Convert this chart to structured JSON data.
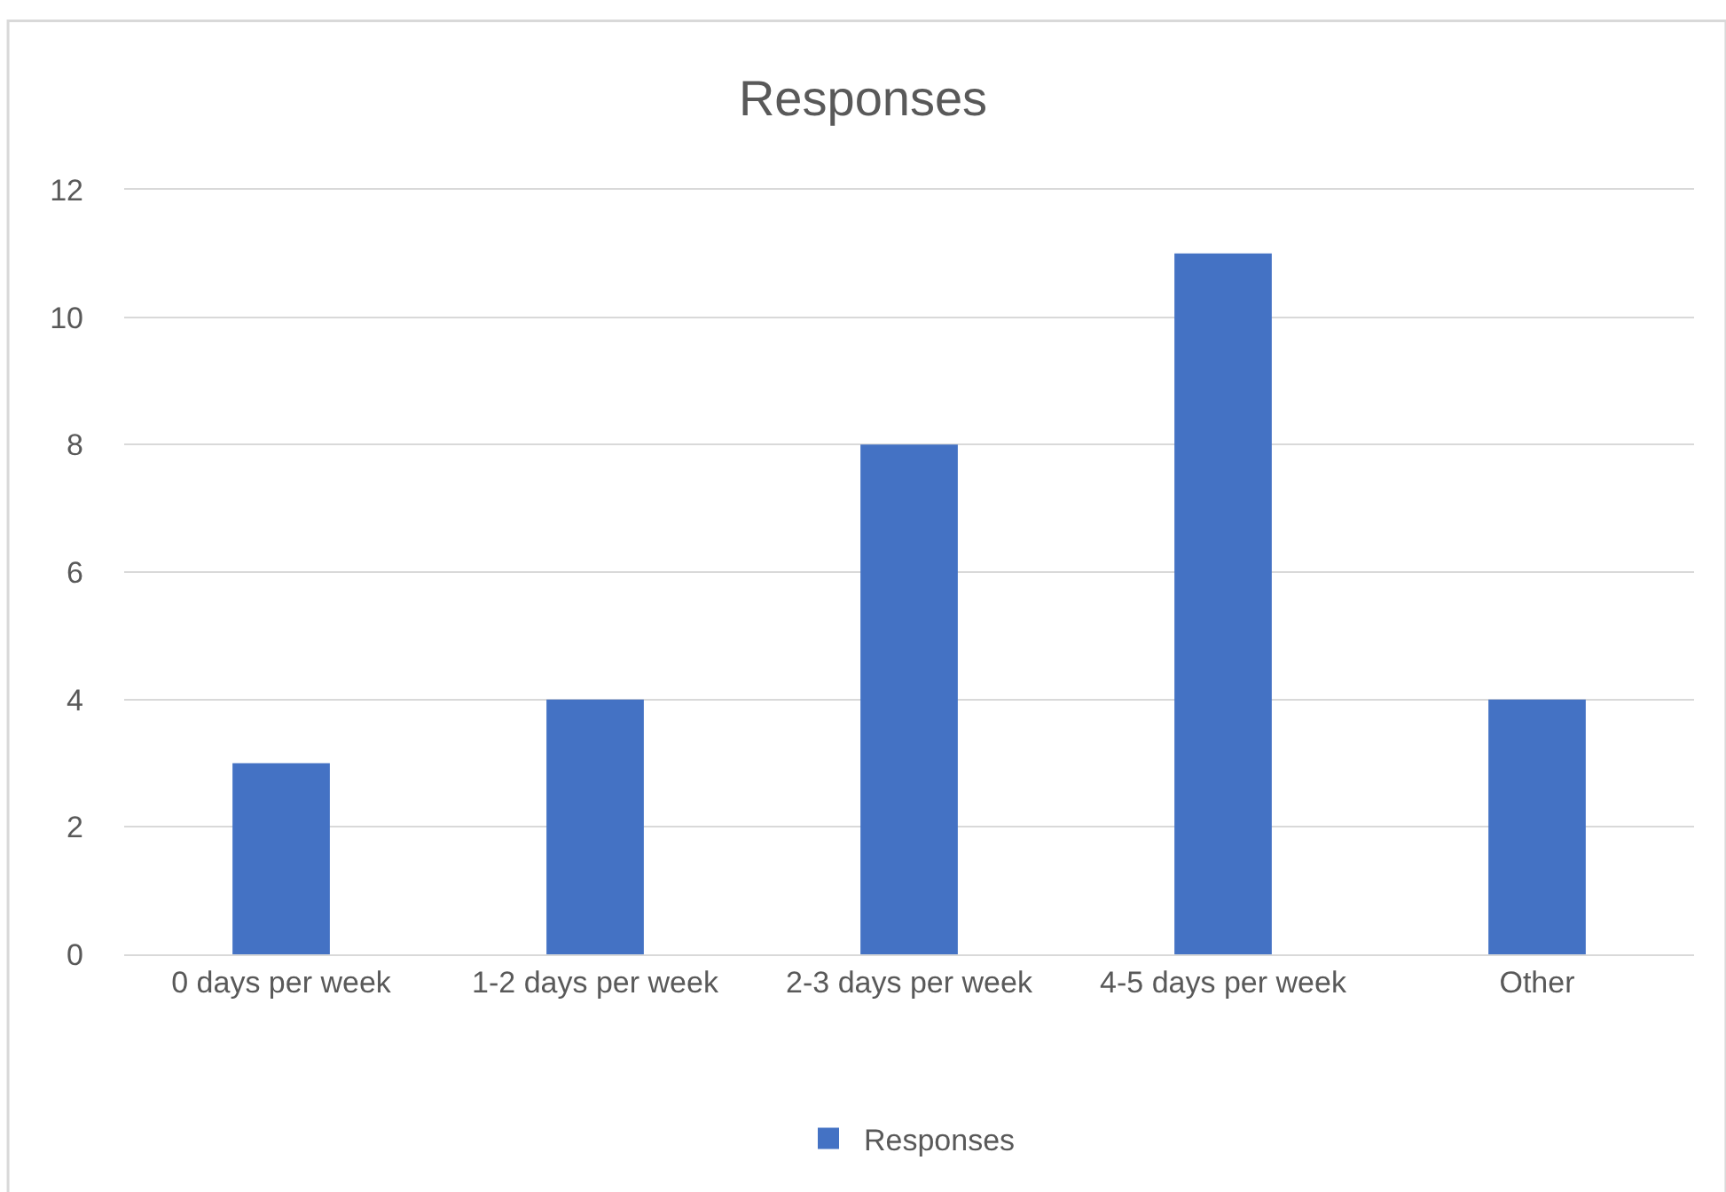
{
  "chart_data": {
    "type": "bar",
    "title": "Responses",
    "categories": [
      "0 days per week",
      "1-2 days per week",
      "2-3 days per week",
      "4-5 days per week",
      "Other"
    ],
    "series": [
      {
        "name": "Responses",
        "color": "#4472c4",
        "values": [
          3,
          4,
          8,
          11,
          4
        ]
      }
    ],
    "ylim": [
      0,
      12
    ],
    "yticks": [
      0,
      2,
      4,
      6,
      8,
      10,
      12
    ],
    "grid": "y",
    "legend": "bottom"
  }
}
